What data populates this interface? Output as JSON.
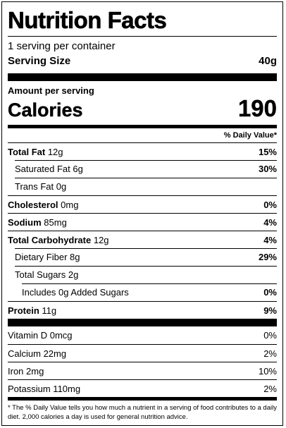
{
  "title": "Nutrition Facts",
  "servings": "1 serving per container",
  "serving_size": {
    "label": "Serving Size",
    "value": "40g"
  },
  "amount_per_serving": "Amount per serving",
  "calories": {
    "label": "Calories",
    "value": "190"
  },
  "dv_header": "% Daily Value*",
  "nutrients": {
    "total_fat": {
      "name": "Total Fat",
      "amount": "12g",
      "dv": "15%"
    },
    "saturated_fat": {
      "name": "Saturated Fat 6g",
      "dv": "30%"
    },
    "trans_fat": {
      "name": "Trans Fat 0g"
    },
    "cholesterol": {
      "name": "Cholesterol",
      "amount": "0mg",
      "dv": "0%"
    },
    "sodium": {
      "name": "Sodium",
      "amount": "85mg",
      "dv": "4%"
    },
    "total_carb": {
      "name": "Total Carbohydrate",
      "amount": "12g",
      "dv": "4%"
    },
    "dietary_fiber": {
      "name": "Dietary Fiber 8g",
      "dv": "29%"
    },
    "total_sugars": {
      "name": "Total Sugars 2g"
    },
    "added_sugars": {
      "name": "Includes 0g Added Sugars",
      "dv": "0%"
    },
    "protein": {
      "name": "Protein",
      "amount": "11g",
      "dv": "9%"
    }
  },
  "vitamins": [
    {
      "name": "Vitamin D 0mcg",
      "dv": "0%"
    },
    {
      "name": "Calcium 22mg",
      "dv": "2%"
    },
    {
      "name": "Iron 2mg",
      "dv": "10%"
    },
    {
      "name": "Potassium 110mg",
      "dv": "2%"
    }
  ],
  "footnote": "* The % Daily Value tells you how much a nutrient in a serving of food contributes to a daily diet. 2,000 calories a day is used for general nutrition advice."
}
